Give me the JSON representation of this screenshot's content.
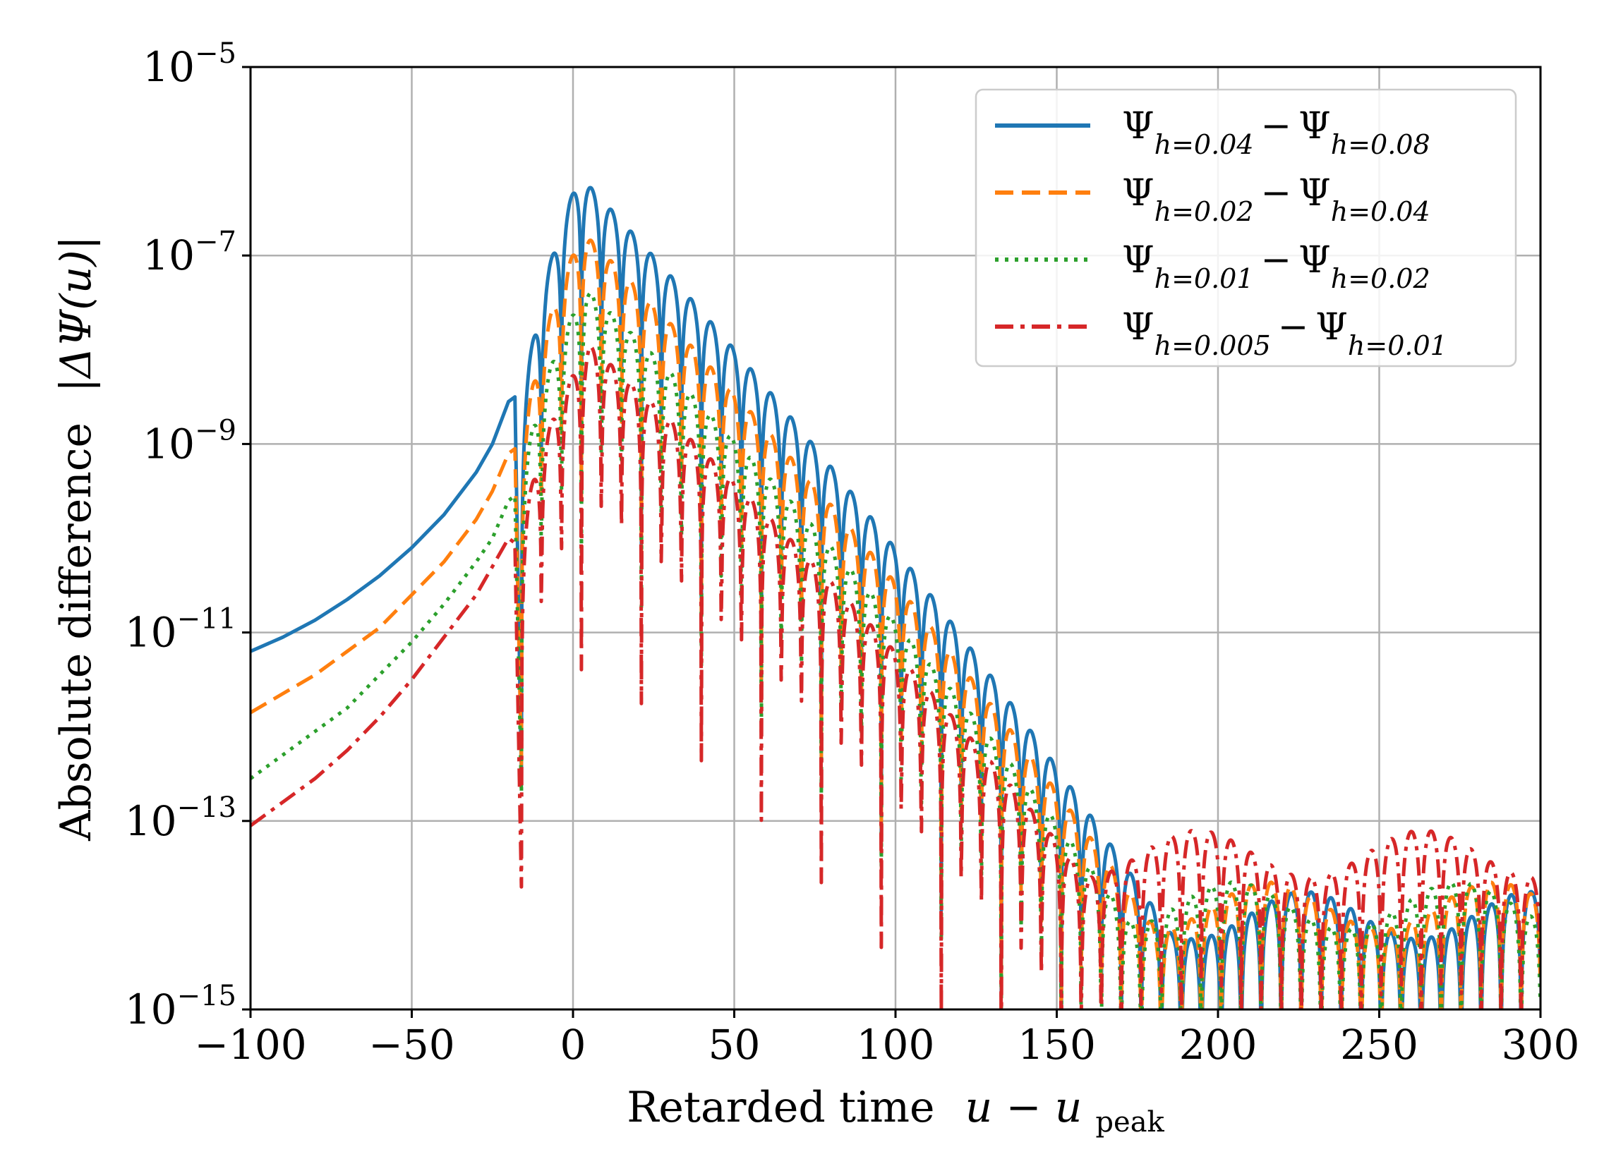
{
  "chart_data": {
    "type": "line",
    "title": "",
    "xlabel": {
      "text": "Retarded time",
      "math": "u − u",
      "math_sub": "peak"
    },
    "ylabel": {
      "text": "Absolute difference",
      "math": "|ΔΨ(u)|"
    },
    "xlim": [
      -100,
      300
    ],
    "ylim_log10": [
      -15,
      -5
    ],
    "yscale": "log",
    "grid": true,
    "legend_position": "top-right",
    "x_ticks": [
      {
        "value": -100,
        "label": "−100"
      },
      {
        "value": -50,
        "label": "−50"
      },
      {
        "value": 0,
        "label": "0"
      },
      {
        "value": 50,
        "label": "50"
      },
      {
        "value": 100,
        "label": "100"
      },
      {
        "value": 150,
        "label": "150"
      },
      {
        "value": 200,
        "label": "200"
      },
      {
        "value": 250,
        "label": "250"
      },
      {
        "value": 300,
        "label": "300"
      }
    ],
    "y_ticks": [
      {
        "exp": -5,
        "base": "10",
        "sup": "−5"
      },
      {
        "exp": -7,
        "base": "10",
        "sup": "−7"
      },
      {
        "exp": -9,
        "base": "10",
        "sup": "−9"
      },
      {
        "exp": -11,
        "base": "10",
        "sup": "−11"
      },
      {
        "exp": -13,
        "base": "10",
        "sup": "−13"
      },
      {
        "exp": -15,
        "base": "10",
        "sup": "−15"
      }
    ],
    "series": [
      {
        "name": "Ψ_{h=0.04} − Ψ_{h=0.08}",
        "label_a": "Ψ",
        "sub_a": "h=0.04",
        "minus": "−",
        "label_b": "Ψ",
        "sub_b": "h=0.08",
        "color": "#1f77b4",
        "dash": "solid",
        "log10_points": [
          [
            -100,
            -11.2
          ],
          [
            -90,
            -11.05
          ],
          [
            -80,
            -10.87
          ],
          [
            -70,
            -10.65
          ],
          [
            -60,
            -10.4
          ],
          [
            -50,
            -10.1
          ],
          [
            -40,
            -9.75
          ],
          [
            -30,
            -9.3
          ],
          [
            -25,
            -9.0
          ],
          [
            -20,
            -8.55
          ],
          [
            -18,
            -8.5
          ]
        ],
        "peak_log10": -6.15,
        "peak_time": 2,
        "osc_start": -16,
        "period": 6.2,
        "decay_per_unit": 0.0365,
        "rise_start": -16,
        "rise_level": -9.3,
        "noise_floor": -14.0,
        "trough_depth": 3.2
      },
      {
        "name": "Ψ_{h=0.02} − Ψ_{h=0.04}",
        "label_a": "Ψ",
        "sub_a": "h=0.02",
        "minus": "−",
        "label_b": "Ψ",
        "sub_b": "h=0.04",
        "color": "#ff7f0e",
        "dash": "dashed",
        "log10_points": [
          [
            -100,
            -11.85
          ],
          [
            -90,
            -11.65
          ],
          [
            -80,
            -11.45
          ],
          [
            -70,
            -11.2
          ],
          [
            -60,
            -10.95
          ],
          [
            -50,
            -10.6
          ],
          [
            -40,
            -10.25
          ],
          [
            -30,
            -9.8
          ],
          [
            -25,
            -9.5
          ],
          [
            -20,
            -9.1
          ],
          [
            -18,
            -9.05
          ]
        ],
        "peak_log10": -6.75,
        "peak_time": 3,
        "osc_start": -16,
        "period": 6.2,
        "decay_per_unit": 0.0345,
        "rise_start": -16,
        "rise_level": -9.6,
        "noise_floor": -13.9,
        "trough_depth": 2.8
      },
      {
        "name": "Ψ_{h=0.01} − Ψ_{h=0.02}",
        "label_a": "Ψ",
        "sub_a": "h=0.01",
        "minus": "−",
        "label_b": "Ψ",
        "sub_b": "h=0.02",
        "color": "#2ca02c",
        "dash": "dotted",
        "log10_points": [
          [
            -100,
            -12.55
          ],
          [
            -90,
            -12.3
          ],
          [
            -80,
            -12.05
          ],
          [
            -70,
            -11.8
          ],
          [
            -60,
            -11.45
          ],
          [
            -50,
            -11.1
          ],
          [
            -40,
            -10.7
          ],
          [
            -30,
            -10.25
          ],
          [
            -25,
            -10.0
          ],
          [
            -20,
            -9.6
          ],
          [
            -18,
            -9.55
          ]
        ],
        "peak_log10": -7.35,
        "peak_time": 4,
        "osc_start": -16,
        "period": 6.2,
        "decay_per_unit": 0.033,
        "rise_start": -16,
        "rise_level": -9.9,
        "noise_floor": -13.9,
        "trough_depth": 2.8
      },
      {
        "name": "Ψ_{h=0.005} − Ψ_{h=0.01}",
        "label_a": "Ψ",
        "sub_a": "h=0.005",
        "minus": "−",
        "label_b": "Ψ",
        "sub_b": "h=0.01",
        "color": "#d62728",
        "dash": "dashdot",
        "log10_points": [
          [
            -100,
            -13.05
          ],
          [
            -90,
            -12.8
          ],
          [
            -80,
            -12.55
          ],
          [
            -70,
            -12.25
          ],
          [
            -60,
            -11.9
          ],
          [
            -50,
            -11.5
          ],
          [
            -40,
            -11.05
          ],
          [
            -30,
            -10.6
          ],
          [
            -25,
            -10.3
          ],
          [
            -20,
            -10.0
          ],
          [
            -18,
            -10.05
          ]
        ],
        "peak_log10": -7.95,
        "peak_time": 5,
        "osc_start": -16,
        "period": 6.2,
        "decay_per_unit": 0.0305,
        "rise_start": -16,
        "rise_level": -10.4,
        "noise_floor": -13.35,
        "trough_depth": 3.3
      }
    ]
  }
}
